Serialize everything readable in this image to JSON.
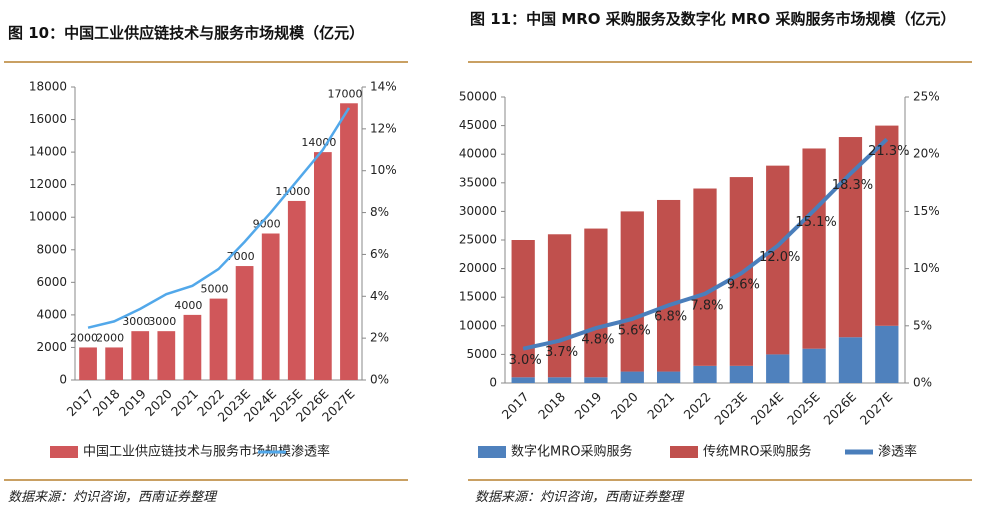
{
  "chart_data": [
    {
      "type": "bar",
      "title": "图 10：中国工业供应链技术与服务市场规模（亿元）",
      "source": "数据来源：灼识咨询，西南证券整理",
      "categories": [
        "2017",
        "2018",
        "2019",
        "2020",
        "2021",
        "2022",
        "2023E",
        "2024E",
        "2025E",
        "2026E",
        "2027E"
      ],
      "series": [
        {
          "name": "中国工业供应链技术与服务市场规模",
          "type": "bar",
          "color": "#d0575a",
          "show_values": true,
          "values": [
            2000,
            2000,
            3000,
            3000,
            4000,
            5000,
            7000,
            9000,
            11000,
            14000,
            17000
          ]
        },
        {
          "name": "渗透率",
          "type": "line",
          "axis": "y2",
          "color": "#52a8ea",
          "values": [
            2.5,
            2.8,
            3.4,
            4.1,
            4.5,
            5.3,
            6.6,
            8.0,
            9.5,
            11.0,
            13.0
          ]
        }
      ],
      "ylim": [
        0,
        18000
      ],
      "yticks": [
        0,
        2000,
        4000,
        6000,
        8000,
        10000,
        12000,
        14000,
        16000,
        18000
      ],
      "y2lim": [
        0,
        14
      ],
      "y2ticks": [
        {
          "value": 0,
          "label": "0%"
        },
        {
          "value": 2,
          "label": "2%"
        },
        {
          "value": 4,
          "label": "4%"
        },
        {
          "value": 6,
          "label": "6%"
        },
        {
          "value": 8,
          "label": "8%"
        },
        {
          "value": 10,
          "label": "10%"
        },
        {
          "value": 12,
          "label": "12%"
        },
        {
          "value": 14,
          "label": "14%"
        }
      ]
    },
    {
      "type": "bar",
      "title": "图 11：中国 MRO 采购服务及数字化 MRO 采购服务市场规模（亿元）",
      "source": "数据来源：灼识咨询，西南证券整理",
      "categories": [
        "2017",
        "2018",
        "2019",
        "2020",
        "2021",
        "2022",
        "2023E",
        "2024E",
        "2025E",
        "2026E",
        "2027E"
      ],
      "series": [
        {
          "name": "数字化MRO采购服务",
          "type": "bar",
          "color": "#4f81bd",
          "values": [
            1000,
            1000,
            1000,
            2000,
            2000,
            3000,
            3000,
            5000,
            6000,
            8000,
            10000
          ]
        },
        {
          "name": "传统MRO采购服务",
          "type": "bar",
          "color": "#c0504d",
          "values": [
            24000,
            25000,
            26000,
            28000,
            30000,
            31000,
            33000,
            33000,
            35000,
            35000,
            35000
          ]
        },
        {
          "name": "渗透率",
          "type": "line",
          "axis": "y2",
          "color": "#4a7ebb",
          "values": [
            3.0,
            3.7,
            4.8,
            5.6,
            6.8,
            7.8,
            9.6,
            12.0,
            15.1,
            18.3,
            21.3
          ],
          "value_labels": [
            "3.0%",
            "3.7%",
            "4.8%",
            "5.6%",
            "6.8%",
            "7.8%",
            "9.6%",
            "12.0%",
            "15.1%",
            "18.3%",
            "21.3%"
          ]
        }
      ],
      "ylim": [
        0,
        50000
      ],
      "yticks": [
        0,
        5000,
        10000,
        15000,
        20000,
        25000,
        30000,
        35000,
        40000,
        45000,
        50000
      ],
      "y2lim": [
        0,
        25
      ],
      "y2ticks": [
        {
          "value": 0,
          "label": "0%"
        },
        {
          "value": 5,
          "label": "5%"
        },
        {
          "value": 10,
          "label": "10%"
        },
        {
          "value": 15,
          "label": "15%"
        },
        {
          "value": 20,
          "label": "20%"
        },
        {
          "value": 25,
          "label": "25%"
        }
      ]
    }
  ]
}
